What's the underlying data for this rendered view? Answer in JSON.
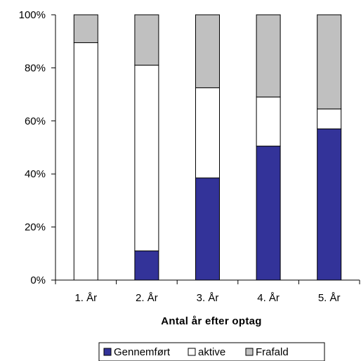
{
  "chart_data": {
    "type": "bar",
    "stacked": true,
    "percent_scale": true,
    "categories": [
      "1. År",
      "2. År",
      "3. År",
      "4. År",
      "5. År"
    ],
    "series": [
      {
        "name": "Gennemført",
        "color": "#333399",
        "values": [
          0,
          11,
          38.5,
          50.5,
          57
        ]
      },
      {
        "name": "aktive",
        "color": "#ffffff",
        "values": [
          89.5,
          70,
          34,
          18.5,
          7.5
        ]
      },
      {
        "name": "Frafald",
        "color": "#c0c0c0",
        "values": [
          10.5,
          19,
          27.5,
          31,
          35.5
        ]
      }
    ],
    "title": "",
    "xlabel": "Antal år efter optag",
    "ylabel": "",
    "ylim": [
      0,
      100
    ],
    "yticks": [
      "0%",
      "20%",
      "40%",
      "60%",
      "80%",
      "100%"
    ],
    "grid": false,
    "legend": "bottom"
  }
}
